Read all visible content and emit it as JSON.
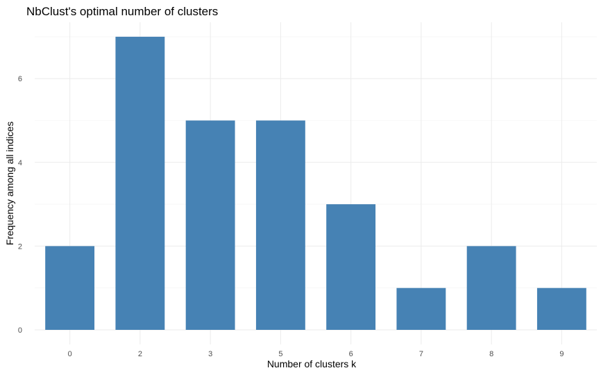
{
  "chart_data": {
    "type": "bar",
    "title": "NbClust's optimal number of clusters",
    "xlabel": "Number of clusters k",
    "ylabel": "Frequency among all indices",
    "categories": [
      "0",
      "2",
      "3",
      "5",
      "6",
      "7",
      "8",
      "9"
    ],
    "values": [
      2,
      7,
      5,
      5,
      3,
      1,
      2,
      1
    ],
    "ylim": [
      0,
      7
    ],
    "yticks": [
      0,
      2,
      4,
      6
    ],
    "grid": true,
    "legend": "none",
    "bar_color": "#4682b4"
  }
}
